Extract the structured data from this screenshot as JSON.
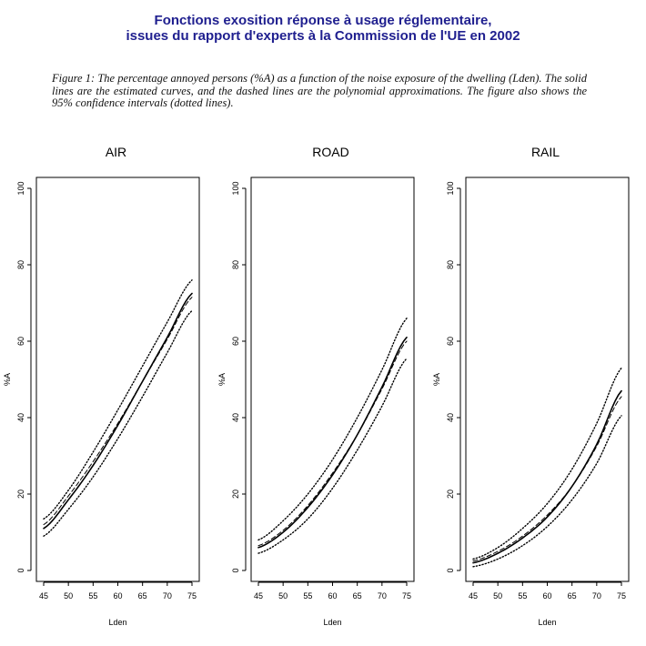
{
  "header": {
    "title_line1": "Fonctions exosition réponse à usage réglementaire,",
    "title_line2": "issues du rapport d'experts à la Commission de l'UE en 2002"
  },
  "figure_caption": "Figure 1: The percentage annoyed persons (%A) as a function of the noise exposure of the dwelling (Lden). The solid lines are the estimated curves, and the dashed lines are the polynomial approximations. The figure also shows the 95% confidence intervals (dotted lines).",
  "chart_data": [
    {
      "type": "line",
      "title": "AIR",
      "xlabel": "Lden",
      "ylabel": "%A",
      "xlim": [
        45,
        75
      ],
      "ylim": [
        0,
        100
      ],
      "xticks": [
        45,
        50,
        55,
        60,
        65,
        70,
        75
      ],
      "yticks": [
        0,
        20,
        40,
        60,
        80,
        100
      ],
      "grid": false,
      "x": [
        45,
        50,
        55,
        60,
        65,
        70,
        75
      ],
      "series": [
        {
          "style": "solid",
          "values": [
            11,
            18.5,
            27.5,
            38,
            49.5,
            61,
            72.5
          ]
        },
        {
          "style": "dashed",
          "values": [
            12,
            19.5,
            28.5,
            38.5,
            49.5,
            60.5,
            71.5
          ]
        },
        {
          "style": "dotted",
          "values": [
            13.5,
            21,
            31,
            42,
            53.5,
            65,
            76
          ]
        },
        {
          "style": "dotted",
          "values": [
            9,
            16,
            24.5,
            34.5,
            45.5,
            57,
            68
          ]
        }
      ]
    },
    {
      "type": "line",
      "title": "ROAD",
      "xlabel": "Lden",
      "ylabel": "%A",
      "xlim": [
        45,
        75
      ],
      "ylim": [
        0,
        100
      ],
      "xticks": [
        45,
        50,
        55,
        60,
        65,
        70,
        75
      ],
      "yticks": [
        0,
        20,
        40,
        60,
        80,
        100
      ],
      "grid": false,
      "x": [
        45,
        50,
        55,
        60,
        65,
        70,
        75
      ],
      "series": [
        {
          "style": "solid",
          "values": [
            6,
            10,
            16.5,
            25,
            35.5,
            48,
            61
          ]
        },
        {
          "style": "dashed",
          "values": [
            6.5,
            10.5,
            17,
            25.5,
            35.5,
            47.5,
            60
          ]
        },
        {
          "style": "dotted",
          "values": [
            8,
            13,
            20,
            29,
            40,
            52.5,
            66
          ]
        },
        {
          "style": "dotted",
          "values": [
            4.5,
            8,
            13.5,
            21.5,
            31.5,
            43,
            55.5
          ]
        }
      ]
    },
    {
      "type": "line",
      "title": "RAIL",
      "xlabel": "Lden",
      "ylabel": "%A",
      "xlim": [
        45,
        75
      ],
      "ylim": [
        0,
        100
      ],
      "xticks": [
        45,
        50,
        55,
        60,
        65,
        70,
        75
      ],
      "yticks": [
        0,
        20,
        40,
        60,
        80,
        100
      ],
      "grid": false,
      "x": [
        45,
        50,
        55,
        60,
        65,
        70,
        75
      ],
      "series": [
        {
          "style": "solid",
          "values": [
            2,
            4.5,
            8.5,
            14,
            22,
            33,
            47
          ]
        },
        {
          "style": "dashed",
          "values": [
            2.5,
            5,
            9,
            14.5,
            22,
            32.5,
            45.5
          ]
        },
        {
          "style": "dotted",
          "values": [
            3,
            6,
            11,
            17.5,
            26.5,
            38.5,
            53
          ]
        },
        {
          "style": "dotted",
          "values": [
            1,
            3,
            6.5,
            11.5,
            18.5,
            28,
            40.5
          ]
        }
      ]
    }
  ]
}
